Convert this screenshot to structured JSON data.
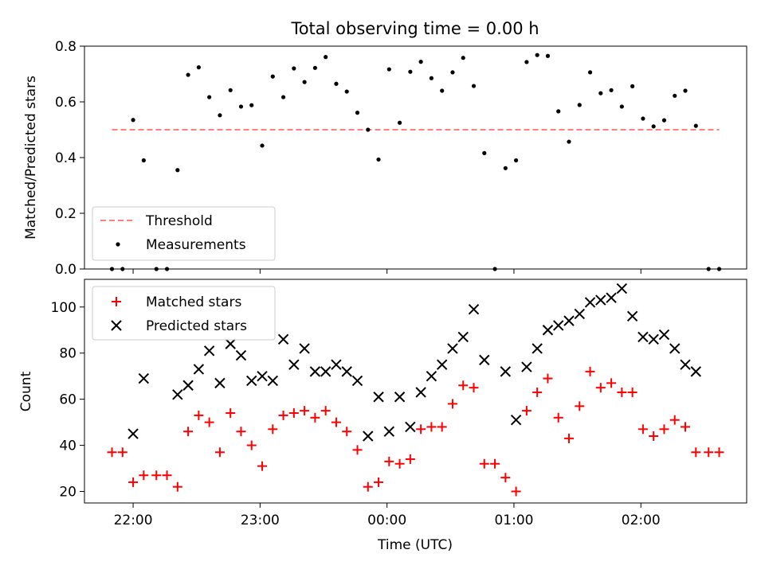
{
  "chart_data": [
    {
      "type": "scatter",
      "title": "Total observing time = 0.00 h",
      "ylabel": "Matched/Predicted stars",
      "ylim": [
        0,
        0.8
      ],
      "yticks": [
        "0.0",
        "0.2",
        "0.4",
        "0.6",
        "0.8"
      ],
      "threshold": {
        "name": "Threshold",
        "value": 0.5,
        "x_start": "21:50",
        "x_end": "02:37",
        "color": "#ff7f7f"
      },
      "series": [
        {
          "name": "Measurements",
          "color": "#000000",
          "points": [
            [
              "21:50",
              0.0
            ],
            [
              "21:55",
              0.0
            ],
            [
              "22:00",
              0.535
            ],
            [
              "22:05",
              0.39
            ],
            [
              "22:11",
              0.0
            ],
            [
              "22:16",
              0.0
            ],
            [
              "22:21",
              0.355
            ],
            [
              "22:26",
              0.697
            ],
            [
              "22:31",
              0.724
            ],
            [
              "22:36",
              0.617
            ],
            [
              "22:41",
              0.552
            ],
            [
              "22:46",
              0.642
            ],
            [
              "22:51",
              0.583
            ],
            [
              "22:56",
              0.588
            ],
            [
              "23:01",
              0.443
            ],
            [
              "23:06",
              0.691
            ],
            [
              "23:11",
              0.617
            ],
            [
              "23:16",
              0.72
            ],
            [
              "23:21",
              0.671
            ],
            [
              "23:26",
              0.722
            ],
            [
              "23:31",
              0.761
            ],
            [
              "23:36",
              0.665
            ],
            [
              "23:41",
              0.637
            ],
            [
              "23:46",
              0.561
            ],
            [
              "23:51",
              0.5
            ],
            [
              "23:56",
              0.393
            ],
            [
              "00:01",
              0.717
            ],
            [
              "00:06",
              0.525
            ],
            [
              "00:11",
              0.708
            ],
            [
              "00:16",
              0.744
            ],
            [
              "00:21",
              0.685
            ],
            [
              "00:26",
              0.64
            ],
            [
              "00:31",
              0.706
            ],
            [
              "00:36",
              0.758
            ],
            [
              "00:41",
              0.657
            ],
            [
              "00:46",
              0.416
            ],
            [
              "00:51",
              0.0
            ],
            [
              "00:56",
              0.362
            ],
            [
              "01:01",
              0.39
            ],
            [
              "01:06",
              0.743
            ],
            [
              "01:11",
              0.768
            ],
            [
              "01:16",
              0.765
            ],
            [
              "01:21",
              0.566
            ],
            [
              "01:26",
              0.457
            ],
            [
              "01:31",
              0.589
            ],
            [
              "01:36",
              0.706
            ],
            [
              "01:41",
              0.631
            ],
            [
              "01:46",
              0.642
            ],
            [
              "01:51",
              0.583
            ],
            [
              "01:56",
              0.656
            ],
            [
              "02:01",
              0.54
            ],
            [
              "02:06",
              0.512
            ],
            [
              "02:11",
              0.534
            ],
            [
              "02:16",
              0.622
            ],
            [
              "02:21",
              0.64
            ],
            [
              "02:26",
              0.514
            ],
            [
              "02:32",
              0.0
            ],
            [
              "02:37",
              0.0
            ]
          ]
        }
      ],
      "legend": {
        "position": "lower-left",
        "entries": [
          "Threshold",
          "Measurements"
        ]
      }
    },
    {
      "type": "scatter",
      "xlabel": "Time (UTC)",
      "ylabel": "Count",
      "xlim": [
        "21:37",
        "02:50"
      ],
      "xticks": [
        "22:00",
        "23:00",
        "00:00",
        "01:00",
        "02:00"
      ],
      "ylim": [
        15,
        112
      ],
      "yticks": [
        "20",
        "40",
        "60",
        "80",
        "100"
      ],
      "series": [
        {
          "name": "Matched stars",
          "marker": "plus",
          "color": "#ff0000",
          "points": [
            [
              "21:50",
              37
            ],
            [
              "21:55",
              37
            ],
            [
              "22:00",
              24
            ],
            [
              "22:05",
              27
            ],
            [
              "22:11",
              27
            ],
            [
              "22:16",
              27
            ],
            [
              "22:21",
              22
            ],
            [
              "22:26",
              46
            ],
            [
              "22:31",
              53
            ],
            [
              "22:36",
              50
            ],
            [
              "22:41",
              37
            ],
            [
              "22:46",
              54
            ],
            [
              "22:51",
              46
            ],
            [
              "22:56",
              40
            ],
            [
              "23:01",
              31
            ],
            [
              "23:06",
              47
            ],
            [
              "23:11",
              53
            ],
            [
              "23:16",
              54
            ],
            [
              "23:21",
              55
            ],
            [
              "23:26",
              52
            ],
            [
              "23:31",
              55
            ],
            [
              "23:36",
              50
            ],
            [
              "23:41",
              46
            ],
            [
              "23:46",
              38
            ],
            [
              "23:51",
              22
            ],
            [
              "23:56",
              24
            ],
            [
              "00:01",
              33
            ],
            [
              "00:06",
              32
            ],
            [
              "00:11",
              34
            ],
            [
              "00:16",
              47
            ],
            [
              "00:21",
              48
            ],
            [
              "00:26",
              48
            ],
            [
              "00:31",
              58
            ],
            [
              "00:36",
              66
            ],
            [
              "00:41",
              65
            ],
            [
              "00:46",
              32
            ],
            [
              "00:51",
              32
            ],
            [
              "00:56",
              26
            ],
            [
              "01:01",
              20
            ],
            [
              "01:06",
              55
            ],
            [
              "01:11",
              63
            ],
            [
              "01:16",
              69
            ],
            [
              "01:21",
              52
            ],
            [
              "01:26",
              43
            ],
            [
              "01:31",
              57
            ],
            [
              "01:36",
              72
            ],
            [
              "01:41",
              65
            ],
            [
              "01:46",
              67
            ],
            [
              "01:51",
              63
            ],
            [
              "01:56",
              63
            ],
            [
              "02:01",
              47
            ],
            [
              "02:06",
              44
            ],
            [
              "02:11",
              47
            ],
            [
              "02:16",
              51
            ],
            [
              "02:21",
              48
            ],
            [
              "02:26",
              37
            ],
            [
              "02:32",
              37
            ],
            [
              "02:37",
              37
            ]
          ]
        },
        {
          "name": "Predicted stars",
          "marker": "x",
          "color": "#000000",
          "points": [
            [
              "22:00",
              45
            ],
            [
              "22:05",
              69
            ],
            [
              "22:21",
              62
            ],
            [
              "22:26",
              66
            ],
            [
              "22:31",
              73
            ],
            [
              "22:36",
              81
            ],
            [
              "22:41",
              67
            ],
            [
              "22:46",
              84
            ],
            [
              "22:51",
              79
            ],
            [
              "22:56",
              68
            ],
            [
              "23:01",
              70
            ],
            [
              "23:06",
              68
            ],
            [
              "23:11",
              86
            ],
            [
              "23:16",
              75
            ],
            [
              "23:21",
              82
            ],
            [
              "23:26",
              72
            ],
            [
              "23:31",
              72
            ],
            [
              "23:36",
              75
            ],
            [
              "23:41",
              72
            ],
            [
              "23:46",
              68
            ],
            [
              "23:51",
              44
            ],
            [
              "23:56",
              61
            ],
            [
              "00:01",
              46
            ],
            [
              "00:06",
              61
            ],
            [
              "00:11",
              48
            ],
            [
              "00:16",
              63
            ],
            [
              "00:21",
              70
            ],
            [
              "00:26",
              75
            ],
            [
              "00:31",
              82
            ],
            [
              "00:36",
              87
            ],
            [
              "00:41",
              99
            ],
            [
              "00:46",
              77
            ],
            [
              "00:56",
              72
            ],
            [
              "01:01",
              51
            ],
            [
              "01:06",
              74
            ],
            [
              "01:11",
              82
            ],
            [
              "01:16",
              90
            ],
            [
              "01:21",
              92
            ],
            [
              "01:26",
              94
            ],
            [
              "01:31",
              97
            ],
            [
              "01:36",
              102
            ],
            [
              "01:41",
              103
            ],
            [
              "01:46",
              104
            ],
            [
              "01:51",
              108
            ],
            [
              "01:56",
              96
            ],
            [
              "02:01",
              87
            ],
            [
              "02:06",
              86
            ],
            [
              "02:11",
              88
            ],
            [
              "02:16",
              82
            ],
            [
              "02:21",
              75
            ],
            [
              "02:26",
              72
            ]
          ]
        }
      ],
      "legend": {
        "position": "upper-left",
        "entries": [
          "Matched stars",
          "Predicted stars"
        ]
      }
    }
  ]
}
